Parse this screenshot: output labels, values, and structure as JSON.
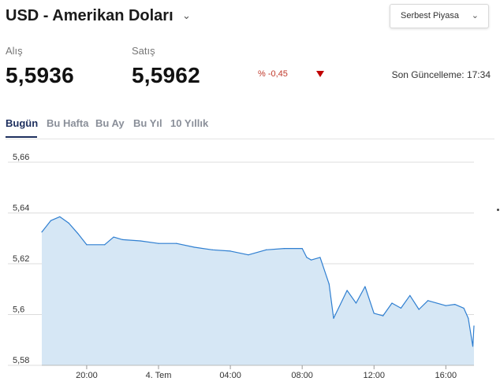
{
  "header": {
    "title": "USD - Amerikan Doları",
    "title_chevron": "⌄",
    "market_select": {
      "value": "Serbest Piyasa",
      "chevron": "⌄"
    }
  },
  "quote": {
    "buy_label": "Alış",
    "buy_value": "5,5936",
    "sell_label": "Satış",
    "sell_value": "5,5962",
    "change": "% -0,45",
    "change_direction_icon": "down-triangle-icon",
    "last_update": "Son Güncelleme: 17:34"
  },
  "tabs": [
    {
      "label": "Bugün",
      "active": true
    },
    {
      "label": "Bu Hafta",
      "active": false
    },
    {
      "label": "Bu Ay",
      "active": false
    },
    {
      "label": "Bu Yıl",
      "active": false
    },
    {
      "label": "10 Yıllık",
      "active": false
    }
  ],
  "colors": {
    "accent": "#1d2f5e",
    "line": "#2f7fd1",
    "fill": "#d6e7f5",
    "negative": "#c0392b",
    "arrow": "#c00000"
  },
  "chart_data": {
    "type": "area",
    "title": "",
    "xlabel": "",
    "ylabel": "",
    "ylim": [
      5.58,
      5.66
    ],
    "y_ticks": [
      5.66,
      5.64,
      5.62,
      5.6,
      5.58
    ],
    "y_tick_labels": [
      "5,66",
      "5,64",
      "5,62",
      "5,6",
      "5,58"
    ],
    "x_range": [
      "2018-07-03T17:30",
      "2018-07-04T17:34"
    ],
    "x_ticks": [
      "2018-07-03T20:00",
      "2018-07-04T00:00",
      "2018-07-04T04:00",
      "2018-07-04T08:00",
      "2018-07-04T12:00",
      "2018-07-04T16:00"
    ],
    "x_tick_labels": [
      "20:00",
      "4. Tem",
      "04:00",
      "08:00",
      "12:00",
      "16:00"
    ],
    "grid": true,
    "series": [
      {
        "x": [
          "2018-07-03T17:30",
          "2018-07-03T18:00",
          "2018-07-03T18:30",
          "2018-07-03T19:00",
          "2018-07-03T19:30",
          "2018-07-03T20:00",
          "2018-07-03T21:00",
          "2018-07-03T21:30",
          "2018-07-03T22:00",
          "2018-07-03T23:00",
          "2018-07-04T00:00",
          "2018-07-04T01:00",
          "2018-07-04T02:00",
          "2018-07-04T03:00",
          "2018-07-04T04:00",
          "2018-07-04T05:00",
          "2018-07-04T06:00",
          "2018-07-04T07:00",
          "2018-07-04T08:00",
          "2018-07-04T08:15",
          "2018-07-04T08:30",
          "2018-07-04T09:00",
          "2018-07-04T09:30",
          "2018-07-04T09:45",
          "2018-07-04T10:30",
          "2018-07-04T11:00",
          "2018-07-04T11:30",
          "2018-07-04T12:00",
          "2018-07-04T12:30",
          "2018-07-04T13:00",
          "2018-07-04T13:30",
          "2018-07-04T14:00",
          "2018-07-04T14:30",
          "2018-07-04T15:00",
          "2018-07-04T16:00",
          "2018-07-04T16:30",
          "2018-07-04T17:00",
          "2018-07-04T17:15",
          "2018-07-04T17:30",
          "2018-07-04T17:34"
        ],
        "y": [
          5.6325,
          5.637,
          5.6385,
          5.636,
          5.632,
          5.6275,
          5.6275,
          5.6305,
          5.6295,
          5.629,
          5.628,
          5.628,
          5.6265,
          5.6255,
          5.625,
          5.6235,
          5.6255,
          5.626,
          5.626,
          5.6225,
          5.6215,
          5.6225,
          5.612,
          5.5985,
          5.6095,
          5.6045,
          5.611,
          5.6005,
          5.5995,
          5.6045,
          5.6025,
          5.6075,
          5.602,
          5.6055,
          5.6035,
          5.604,
          5.6025,
          5.5985,
          5.5875,
          5.5955
        ]
      }
    ]
  }
}
